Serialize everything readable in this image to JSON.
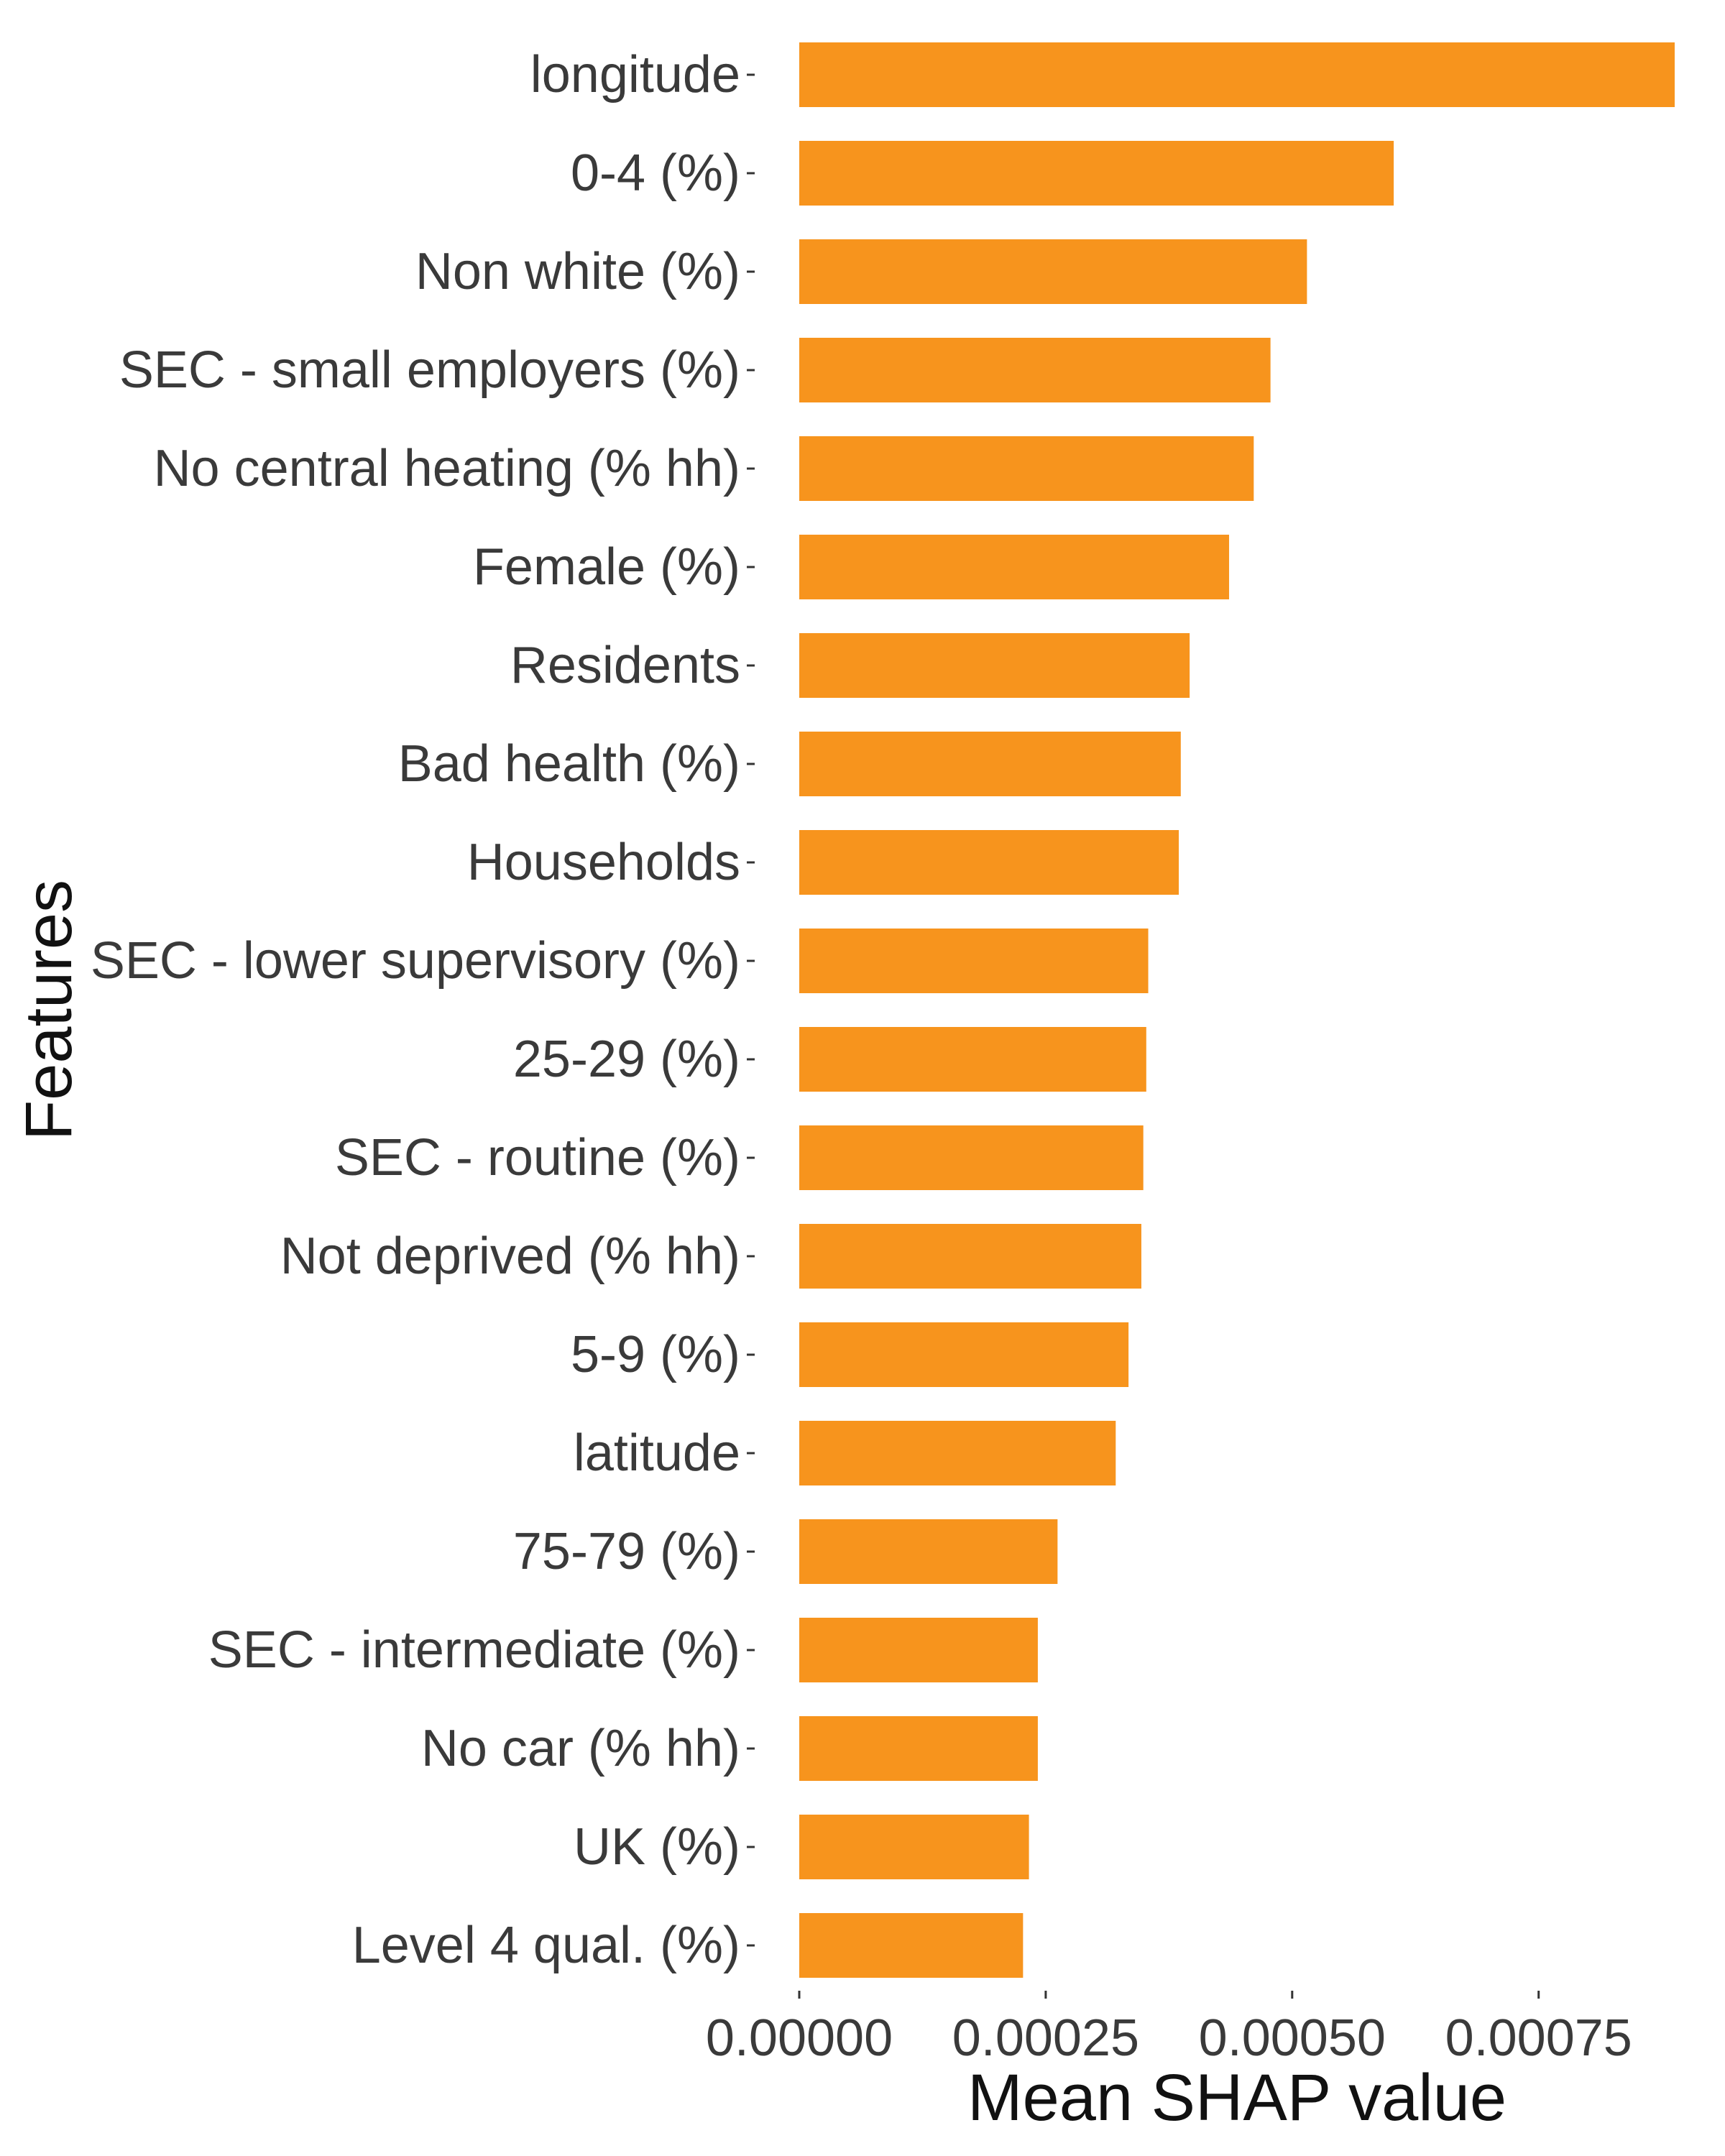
{
  "chart_data": {
    "type": "bar",
    "orientation": "horizontal",
    "title": "",
    "xlabel": "Mean SHAP value",
    "ylabel": "Features",
    "categories": [
      "longitude",
      "0-4 (%)",
      "Non white (%)",
      "SEC - small employers (%)",
      "No central heating (% hh)",
      "Female (%)",
      "Residents",
      "Bad health (%)",
      "Households",
      "SEC - lower supervisory (%)",
      "25-29 (%)",
      "SEC - routine (%)",
      "Not deprived (% hh)",
      "5-9 (%)",
      "latitude",
      "75-79 (%)",
      "SEC - intermediate (%)",
      "No car (% hh)",
      "UK (%)",
      "Level 4 qual. (%)"
    ],
    "values": [
      0.000888,
      0.000603,
      0.000515,
      0.000478,
      0.000461,
      0.000436,
      0.000396,
      0.000387,
      0.000385,
      0.000354,
      0.000352,
      0.000349,
      0.000347,
      0.000334,
      0.000321,
      0.000262,
      0.000242,
      0.000242,
      0.000233,
      0.000227
    ],
    "x_ticks": [
      "0.00000",
      "0.00025",
      "0.00050",
      "0.00075"
    ],
    "x_tick_values": [
      0,
      0.00025,
      0.0005,
      0.00075
    ],
    "xlim": [
      0,
      0.000888
    ],
    "grid": false,
    "legend": "none",
    "bar_color": "#F7941D"
  }
}
